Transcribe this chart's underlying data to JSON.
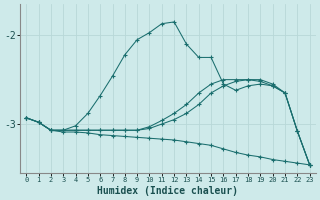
{
  "xlabel": "Humidex (Indice chaleur)",
  "bg_color": "#ceeaea",
  "line_color": "#1a6e6e",
  "grid_color": "#b8d8d8",
  "xlim": [
    -0.5,
    23.5
  ],
  "ylim": [
    -3.55,
    -1.65
  ],
  "yticks": [
    -3,
    -2
  ],
  "xticks": [
    0,
    1,
    2,
    3,
    4,
    5,
    6,
    7,
    8,
    9,
    10,
    11,
    12,
    13,
    14,
    15,
    16,
    17,
    18,
    19,
    20,
    21,
    22,
    23
  ],
  "line1_flat": {
    "x": [
      0,
      1,
      2,
      3,
      4,
      5,
      6,
      7,
      8,
      9,
      10,
      11,
      12,
      13,
      14,
      15,
      16,
      17,
      18,
      19,
      20,
      21,
      22,
      23
    ],
    "y": [
      -2.93,
      -2.98,
      -3.07,
      -3.09,
      -3.09,
      -3.1,
      -3.12,
      -3.13,
      -3.14,
      -3.15,
      -3.16,
      -3.17,
      -3.18,
      -3.2,
      -3.22,
      -3.24,
      -3.28,
      -3.32,
      -3.35,
      -3.37,
      -3.4,
      -3.42,
      -3.44,
      -3.46
    ]
  },
  "line2_peak": {
    "x": [
      0,
      1,
      2,
      3,
      4,
      5,
      6,
      7,
      8,
      9,
      10,
      11,
      12,
      13,
      14,
      15,
      16,
      17,
      18,
      19,
      20,
      21,
      22,
      23
    ],
    "y": [
      -2.93,
      -2.98,
      -3.07,
      -3.07,
      -3.02,
      -2.88,
      -2.68,
      -2.46,
      -2.22,
      -2.05,
      -1.97,
      -1.87,
      -1.85,
      -2.1,
      -2.25,
      -2.25,
      -2.55,
      -2.62,
      -2.57,
      -2.55,
      -2.57,
      -2.65,
      -3.08,
      -3.46
    ]
  },
  "line3_mid1": {
    "x": [
      0,
      1,
      2,
      3,
      4,
      5,
      6,
      7,
      8,
      9,
      10,
      11,
      12,
      13,
      14,
      15,
      16,
      17,
      18,
      19,
      20,
      21,
      22,
      23
    ],
    "y": [
      -2.93,
      -2.98,
      -3.07,
      -3.07,
      -3.07,
      -3.07,
      -3.07,
      -3.07,
      -3.07,
      -3.07,
      -3.05,
      -3.0,
      -2.95,
      -2.88,
      -2.78,
      -2.65,
      -2.57,
      -2.52,
      -2.5,
      -2.5,
      -2.55,
      -2.65,
      -3.08,
      -3.46
    ]
  },
  "line4_mid2": {
    "x": [
      0,
      1,
      2,
      3,
      4,
      5,
      6,
      7,
      8,
      9,
      10,
      11,
      12,
      13,
      14,
      15,
      16,
      17,
      18,
      19,
      20,
      21,
      22,
      23
    ],
    "y": [
      -2.93,
      -2.98,
      -3.07,
      -3.07,
      -3.07,
      -3.07,
      -3.07,
      -3.07,
      -3.07,
      -3.07,
      -3.03,
      -2.96,
      -2.88,
      -2.78,
      -2.65,
      -2.55,
      -2.5,
      -2.5,
      -2.5,
      -2.52,
      -2.57,
      -2.65,
      -3.08,
      -3.46
    ]
  }
}
